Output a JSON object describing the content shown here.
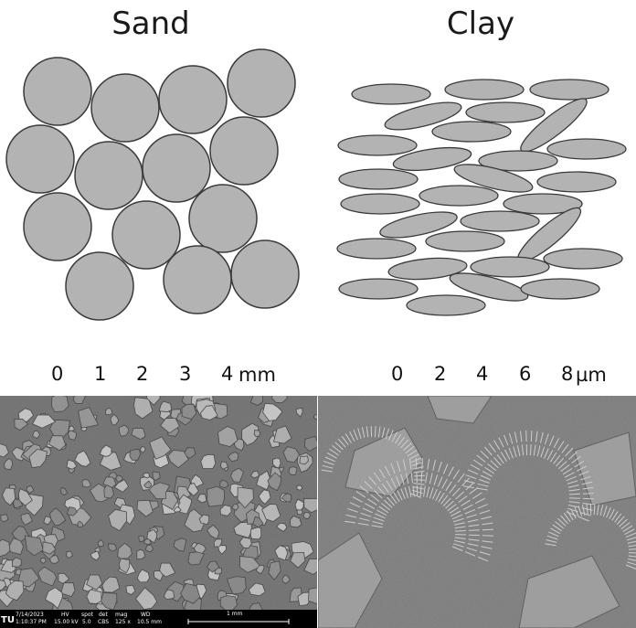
{
  "titles": {
    "sand": "Sand",
    "clay": "Clay"
  },
  "sand_scale": {
    "ticks": [
      "0",
      "1",
      "2",
      "3",
      "4"
    ],
    "unit": "mm"
  },
  "clay_scale": {
    "ticks": [
      "0",
      "2",
      "4",
      "6",
      "8"
    ],
    "unit": "µm"
  },
  "sem_info": {
    "logo": "TU",
    "date": "7/14/2023",
    "time": "1:10:37 PM",
    "hv_label": "HV",
    "hv_value": "15.00 kV",
    "spot_label": "spot",
    "spot_value": "5.0",
    "det_label": "det",
    "det_value": "CBS",
    "mag_label": "mag",
    "mag_value": "125 x",
    "wd_label": "WD",
    "wd_value": "10.5 mm",
    "scalebar_label": "1 mm"
  },
  "colors": {
    "particle_fill": "#b3b3b3",
    "particle_stroke": "#3a3a3a",
    "micrograph_bg": "#7d7d7d"
  }
}
